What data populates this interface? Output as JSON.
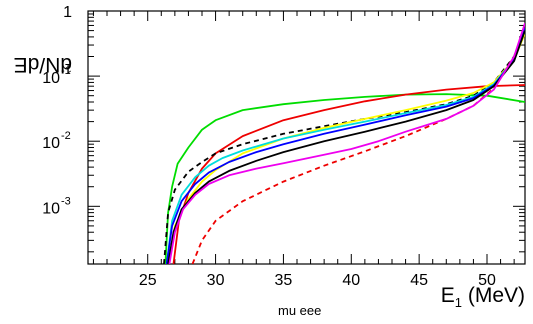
{
  "ylabel": {
    "main": "dN/dE",
    "sub": "1"
  },
  "xlabel": {
    "main": "E",
    "sub": "1",
    "unit": " (MeV)"
  },
  "caption": "mu eee",
  "chart_data": {
    "type": "line",
    "title": "",
    "x_scale": "linear",
    "y_scale": "log",
    "xlim": [
      20.6,
      52.8
    ],
    "ylim": [
      0.00013,
      1.0
    ],
    "grid": false,
    "legend": "none",
    "x_ticks": [
      25,
      30,
      35,
      40,
      45,
      50
    ],
    "y_ticks": [
      {
        "value": 1,
        "label": "1",
        "exp": ""
      },
      {
        "value": 0.1,
        "label": "10",
        "exp": "-1"
      },
      {
        "value": 0.01,
        "label": "10",
        "exp": "-2"
      },
      {
        "value": 0.001,
        "label": "10",
        "exp": "-3"
      }
    ],
    "series": [
      {
        "color": "#00dd00",
        "dash": "solid",
        "points": [
          [
            26.3,
            0.00013
          ],
          [
            26.5,
            0.0008
          ],
          [
            26.8,
            0.002
          ],
          [
            27.2,
            0.0045
          ],
          [
            28,
            0.008
          ],
          [
            29,
            0.015
          ],
          [
            30,
            0.021
          ],
          [
            32,
            0.03
          ],
          [
            35,
            0.037
          ],
          [
            38,
            0.043
          ],
          [
            41,
            0.048
          ],
          [
            44,
            0.052
          ],
          [
            47,
            0.053
          ],
          [
            50,
            0.05
          ],
          [
            52.8,
            0.04
          ]
        ]
      },
      {
        "color": "#ee0000",
        "dash": "solid",
        "points": [
          [
            26.9,
            0.00013
          ],
          [
            27.3,
            0.0006
          ],
          [
            28,
            0.0016
          ],
          [
            29,
            0.0038
          ],
          [
            30,
            0.0065
          ],
          [
            32,
            0.012
          ],
          [
            35,
            0.021
          ],
          [
            38,
            0.03
          ],
          [
            41,
            0.041
          ],
          [
            44,
            0.052
          ],
          [
            47,
            0.062
          ],
          [
            50,
            0.07
          ],
          [
            52.8,
            0.073
          ]
        ]
      },
      {
        "color": "#000000",
        "dash": "dashed",
        "points": [
          [
            26.2,
            0.00013
          ],
          [
            26.5,
            0.0008
          ],
          [
            27,
            0.0018
          ],
          [
            28,
            0.0034
          ],
          [
            29,
            0.0048
          ],
          [
            30,
            0.0065
          ],
          [
            32,
            0.009
          ],
          [
            35,
            0.013
          ],
          [
            38,
            0.017
          ],
          [
            41,
            0.022
          ],
          [
            44,
            0.028
          ],
          [
            47,
            0.037
          ],
          [
            49,
            0.05
          ],
          [
            50.5,
            0.08
          ],
          [
            52,
            0.2
          ],
          [
            52.8,
            0.5
          ]
        ]
      },
      {
        "color": "#ee0000",
        "dash": "dashed",
        "points": [
          [
            28.3,
            0.00013
          ],
          [
            29,
            0.0003
          ],
          [
            30,
            0.0006
          ],
          [
            32,
            0.0012
          ],
          [
            35,
            0.0024
          ],
          [
            38,
            0.0042
          ],
          [
            41,
            0.007
          ],
          [
            44,
            0.012
          ],
          [
            47,
            0.022
          ],
          [
            49,
            0.035
          ],
          [
            50.5,
            0.065
          ],
          [
            52,
            0.2
          ],
          [
            52.8,
            0.55
          ]
        ]
      },
      {
        "color": "#ffff00",
        "dash": "solid",
        "points": [
          [
            26.5,
            0.00013
          ],
          [
            27,
            0.0005
          ],
          [
            28,
            0.0013
          ],
          [
            29,
            0.0024
          ],
          [
            30,
            0.0036
          ],
          [
            32,
            0.0065
          ],
          [
            35,
            0.011
          ],
          [
            38,
            0.016
          ],
          [
            41,
            0.022
          ],
          [
            44,
            0.03
          ],
          [
            47,
            0.042
          ],
          [
            49,
            0.055
          ],
          [
            50.5,
            0.08
          ],
          [
            52,
            0.18
          ],
          [
            52.8,
            0.45
          ]
        ]
      },
      {
        "color": "#00dddd",
        "dash": "solid",
        "points": [
          [
            26.4,
            0.00013
          ],
          [
            26.8,
            0.0006
          ],
          [
            27.5,
            0.0015
          ],
          [
            28.5,
            0.0028
          ],
          [
            29.5,
            0.0042
          ],
          [
            30.5,
            0.0055
          ],
          [
            32,
            0.0072
          ],
          [
            35,
            0.011
          ],
          [
            38,
            0.015
          ],
          [
            41,
            0.02
          ],
          [
            44,
            0.027
          ],
          [
            47,
            0.036
          ],
          [
            49,
            0.048
          ],
          [
            50.5,
            0.075
          ],
          [
            52,
            0.18
          ],
          [
            52.8,
            0.5
          ]
        ]
      },
      {
        "color": "#0000ff",
        "dash": "solid",
        "points": [
          [
            26.4,
            0.00013
          ],
          [
            26.8,
            0.0005
          ],
          [
            27.5,
            0.0012
          ],
          [
            28.5,
            0.0022
          ],
          [
            29.5,
            0.0033
          ],
          [
            31,
            0.0048
          ],
          [
            33,
            0.0068
          ],
          [
            35,
            0.009
          ],
          [
            38,
            0.013
          ],
          [
            41,
            0.018
          ],
          [
            44,
            0.025
          ],
          [
            47,
            0.034
          ],
          [
            49,
            0.046
          ],
          [
            50.5,
            0.072
          ],
          [
            52,
            0.18
          ],
          [
            52.8,
            0.55
          ]
        ]
      },
      {
        "color": "#000000",
        "dash": "solid",
        "points": [
          [
            26.5,
            0.00013
          ],
          [
            26.9,
            0.0004
          ],
          [
            27.5,
            0.0009
          ],
          [
            28.5,
            0.0016
          ],
          [
            29.5,
            0.0024
          ],
          [
            31,
            0.0035
          ],
          [
            33,
            0.005
          ],
          [
            35,
            0.0068
          ],
          [
            38,
            0.01
          ],
          [
            41,
            0.014
          ],
          [
            44,
            0.02
          ],
          [
            47,
            0.03
          ],
          [
            49,
            0.043
          ],
          [
            50.5,
            0.07
          ],
          [
            52,
            0.17
          ],
          [
            52.8,
            0.5
          ]
        ]
      },
      {
        "color": "#ee00ee",
        "dash": "solid",
        "points": [
          [
            26.6,
            0.00013
          ],
          [
            27,
            0.0004
          ],
          [
            27.6,
            0.0009
          ],
          [
            28.5,
            0.0015
          ],
          [
            29.5,
            0.0022
          ],
          [
            31,
            0.003
          ],
          [
            33,
            0.0038
          ],
          [
            35,
            0.0046
          ],
          [
            38,
            0.0062
          ],
          [
            40,
            0.0076
          ],
          [
            42,
            0.01
          ],
          [
            44,
            0.014
          ],
          [
            47,
            0.022
          ],
          [
            49,
            0.035
          ],
          [
            50.5,
            0.062
          ],
          [
            52,
            0.2
          ],
          [
            52.8,
            0.65
          ]
        ]
      }
    ]
  }
}
